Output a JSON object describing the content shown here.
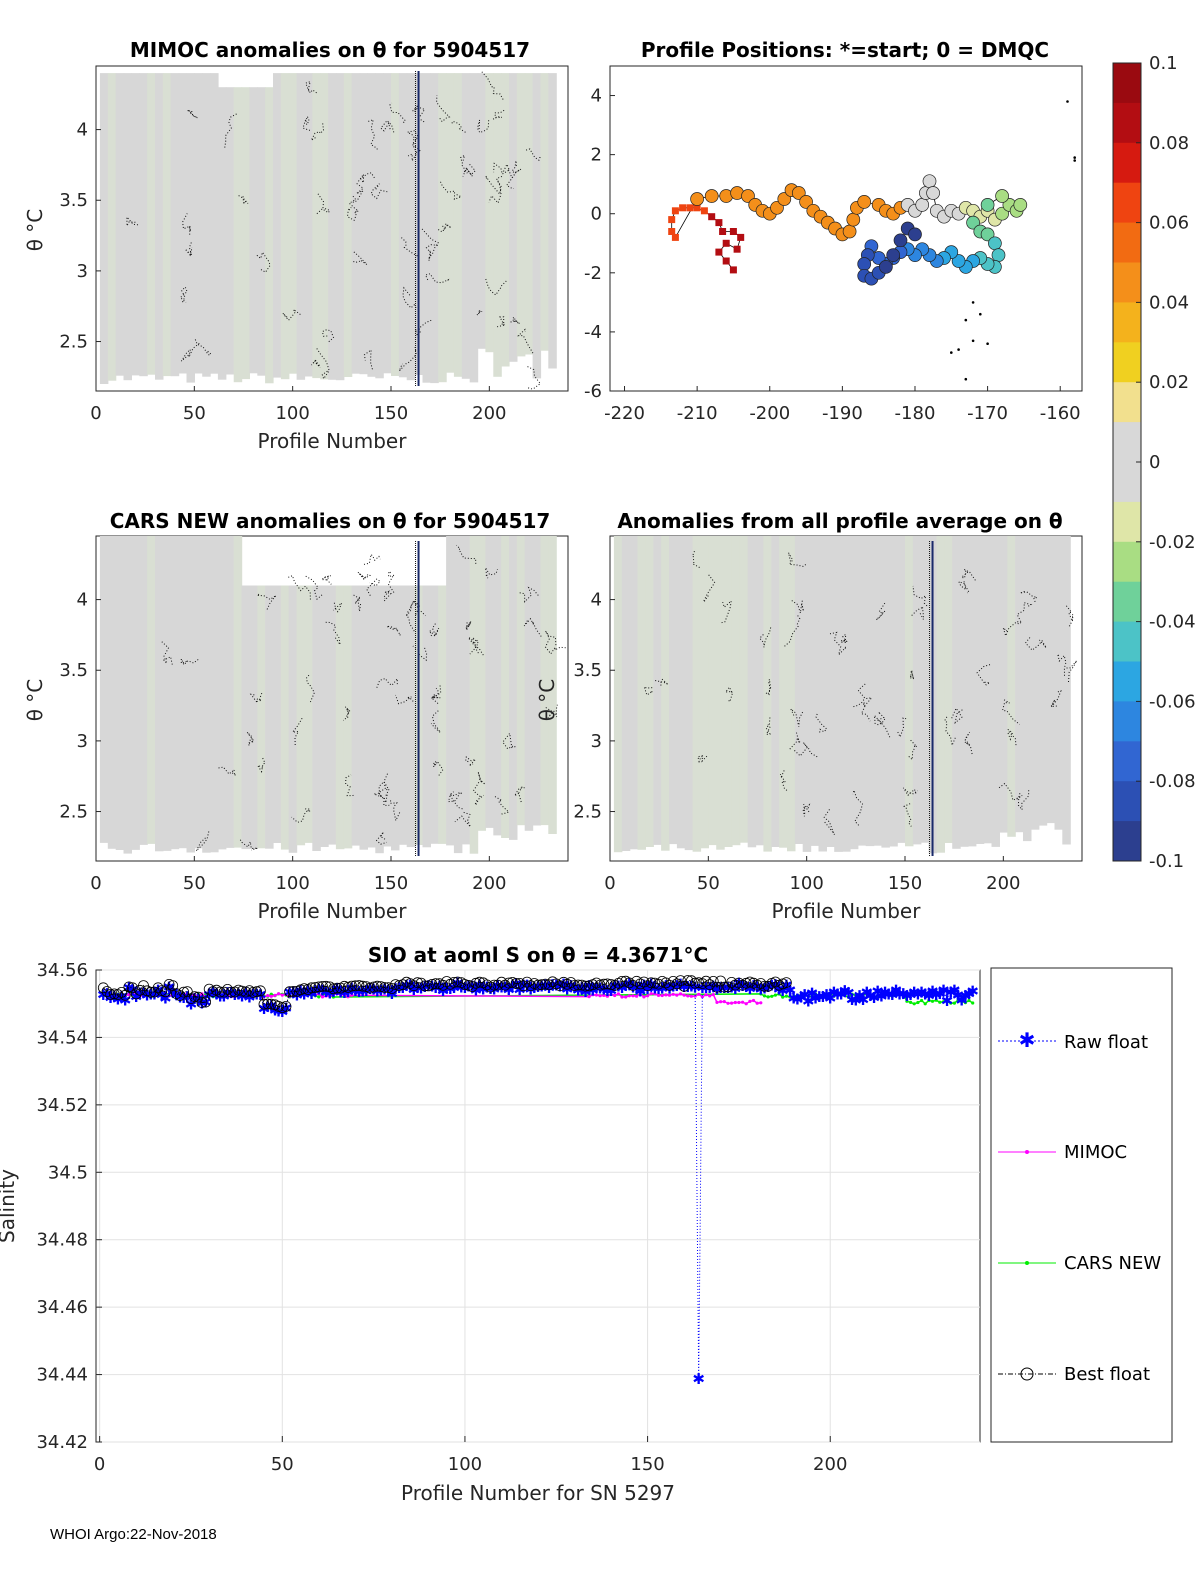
{
  "footer": "WHOI Argo:22-Nov-2018",
  "colors": {
    "field": "#d7d7d7",
    "raw": "#0000ff",
    "mimoc": "#ff00ff",
    "cars": "#00ee00",
    "best": "#000000",
    "grid": "#e2e2e2"
  },
  "colorbar": {
    "ticks": [
      "0.1",
      "0.08",
      "0.06",
      "0.04",
      "0.02",
      "0",
      "-0.02",
      "-0.04",
      "-0.06",
      "-0.08",
      "-0.1"
    ],
    "range": [
      -0.1,
      0.1
    ],
    "scale": [
      "#2c3f8f",
      "#2c50b4",
      "#3166d2",
      "#2d86e0",
      "#2ca6e2",
      "#4cc3c7",
      "#6fd19a",
      "#a9dd83",
      "#dfe6a8",
      "#d8d8d8",
      "#d8d8d8",
      "#f2e08e",
      "#f0d020",
      "#f4b21c",
      "#f48f1a",
      "#f26b12",
      "#ef4411",
      "#d61a10",
      "#b30d12",
      "#9a0a10"
    ]
  },
  "chart_data": [
    {
      "type": "heatmap",
      "title": "MIMOC anomalies on θ  for 5904517",
      "xlabel": "Profile Number",
      "ylabel": "θ °C",
      "xlim": [
        0,
        240
      ],
      "ylim": [
        2.15,
        4.45
      ],
      "xticks": [
        "0",
        "50",
        "100",
        "150",
        "200"
      ],
      "yticks": [
        "4",
        "3.5",
        "3",
        "2.5"
      ],
      "marker_profile": 164
    },
    {
      "type": "scatter",
      "title": "Profile Positions: *=start; 0 = DMQC",
      "xlim": [
        -222,
        -157
      ],
      "ylim": [
        -6,
        5
      ],
      "xticks": [
        "-220",
        "-210",
        "-200",
        "-190",
        "-180",
        "-170",
        "-160"
      ],
      "yticks": [
        "4",
        "2",
        "0",
        "-2",
        "-4",
        "-6"
      ],
      "track": [
        [
          -205,
          -1.9
        ],
        [
          -206,
          -1.6
        ],
        [
          -207,
          -1.3
        ],
        [
          -206,
          -1.0
        ],
        [
          -204.5,
          -1.2
        ],
        [
          -204,
          -0.8
        ],
        [
          -205,
          -0.6
        ],
        [
          -206.5,
          -0.6
        ],
        [
          -207,
          -0.3
        ],
        [
          -208,
          -0.1
        ],
        [
          -209,
          0.1
        ],
        [
          -210,
          0.2
        ],
        [
          -211,
          0.2
        ],
        [
          -212,
          0.2
        ],
        [
          -213,
          0.1
        ],
        [
          -213.5,
          -0.2
        ],
        [
          -213.5,
          -0.6
        ],
        [
          -213,
          -0.8
        ],
        [
          -210,
          0.5
        ],
        [
          -208,
          0.6
        ],
        [
          -206,
          0.6
        ],
        [
          -204.5,
          0.7
        ],
        [
          -203,
          0.6
        ],
        [
          -202,
          0.3
        ],
        [
          -201,
          0.1
        ],
        [
          -200,
          0.0
        ],
        [
          -199,
          0.2
        ],
        [
          -198,
          0.5
        ],
        [
          -197,
          0.8
        ],
        [
          -196,
          0.7
        ],
        [
          -195,
          0.4
        ],
        [
          -194,
          0.1
        ],
        [
          -193,
          -0.1
        ],
        [
          -192,
          -0.3
        ],
        [
          -191,
          -0.5
        ],
        [
          -190,
          -0.7
        ],
        [
          -189,
          -0.6
        ],
        [
          -188.5,
          -0.2
        ],
        [
          -188,
          0.2
        ],
        [
          -187,
          0.4
        ],
        [
          -185,
          0.3
        ],
        [
          -184,
          0.1
        ],
        [
          -183,
          0.0
        ],
        [
          -182,
          0.2
        ],
        [
          -181,
          0.3
        ],
        [
          -180,
          0.1
        ],
        [
          -179,
          0.3
        ],
        [
          -178.5,
          0.7
        ],
        [
          -178,
          1.1
        ],
        [
          -177.5,
          0.7
        ],
        [
          -177,
          0.1
        ],
        [
          -176,
          -0.1
        ],
        [
          -175,
          0.1
        ],
        [
          -174,
          0.0
        ],
        [
          -173,
          0.2
        ],
        [
          -172,
          0.1
        ],
        [
          -171,
          -0.1
        ],
        [
          -170,
          0.1
        ],
        [
          -169,
          -0.2
        ],
        [
          -168,
          0.0
        ],
        [
          -167,
          0.3
        ],
        [
          -166,
          0.1
        ],
        [
          -165.5,
          0.3
        ],
        [
          -168,
          0.6
        ],
        [
          -170,
          0.3
        ],
        [
          -172,
          -0.3
        ],
        [
          -171,
          -0.6
        ],
        [
          -170,
          -0.7
        ],
        [
          -169,
          -1.0
        ],
        [
          -168.5,
          -1.4
        ],
        [
          -169,
          -1.8
        ],
        [
          -170,
          -1.7
        ],
        [
          -171,
          -1.5
        ],
        [
          -172,
          -1.6
        ],
        [
          -173,
          -1.8
        ],
        [
          -174,
          -1.6
        ],
        [
          -175,
          -1.3
        ],
        [
          -176,
          -1.5
        ],
        [
          -177,
          -1.6
        ],
        [
          -178,
          -1.4
        ],
        [
          -179,
          -1.2
        ],
        [
          -180,
          -1.4
        ],
        [
          -181,
          -1.2
        ],
        [
          -182,
          -1.3
        ],
        [
          -183,
          -1.5
        ],
        [
          -184,
          -1.7
        ],
        [
          -185,
          -1.5
        ],
        [
          -186,
          -1.1
        ],
        [
          -186.5,
          -1.4
        ],
        [
          -187,
          -1.7
        ],
        [
          -187,
          -2.1
        ],
        [
          -186,
          -2.2
        ],
        [
          -185,
          -2.0
        ],
        [
          -184,
          -1.8
        ],
        [
          -183,
          -1.4
        ],
        [
          -182,
          -0.9
        ],
        [
          -181,
          -0.5
        ],
        [
          -180,
          -0.7
        ]
      ],
      "outliers": [
        [
          -159,
          3.8
        ],
        [
          -158,
          1.9
        ],
        [
          -158,
          1.8
        ],
        [
          -172,
          -3.0
        ],
        [
          -171,
          -3.4
        ],
        [
          -173,
          -3.6
        ],
        [
          -172,
          -4.3
        ],
        [
          -174,
          -4.6
        ],
        [
          -175,
          -4.7
        ],
        [
          -173,
          -5.6
        ],
        [
          -170,
          -4.4
        ]
      ]
    },
    {
      "type": "heatmap",
      "title": "CARS NEW anomalies on θ for 5904517",
      "xlabel": "Profile Number",
      "ylabel": "θ °C",
      "xlim": [
        0,
        240
      ],
      "ylim": [
        2.15,
        4.45
      ],
      "xticks": [
        "0",
        "50",
        "100",
        "150",
        "200"
      ],
      "yticks": [
        "4",
        "3.5",
        "3",
        "2.5"
      ],
      "marker_profile": 164
    },
    {
      "type": "heatmap",
      "title": "Anomalies from all profile average on θ",
      "xlabel": "Profile Number",
      "ylabel": "θ °C",
      "xlim": [
        0,
        240
      ],
      "ylim": [
        2.15,
        4.45
      ],
      "xticks": [
        "0",
        "50",
        "100",
        "150",
        "200"
      ],
      "yticks": [
        "4",
        "3.5",
        "3",
        "2.5"
      ],
      "marker_profile": 164
    },
    {
      "type": "line",
      "title": "SIO at aoml S on θ = 4.3671°C",
      "xlabel": "Profile Number for SN 5297",
      "ylabel": "Salinity",
      "xlim": [
        -1,
        241
      ],
      "ylim": [
        34.42,
        34.56
      ],
      "xticks": [
        "0",
        "50",
        "100",
        "150",
        "200"
      ],
      "yticks": [
        "34.56",
        "34.54",
        "34.52",
        "34.5",
        "34.48",
        "34.46",
        "34.44",
        "34.42"
      ],
      "series": [
        {
          "name": "Raw float",
          "dip": {
            "x": 164,
            "y": 34.439
          }
        },
        {
          "name": "MIMOC"
        },
        {
          "name": "CARS NEW"
        },
        {
          "name": "Best float"
        }
      ]
    }
  ]
}
